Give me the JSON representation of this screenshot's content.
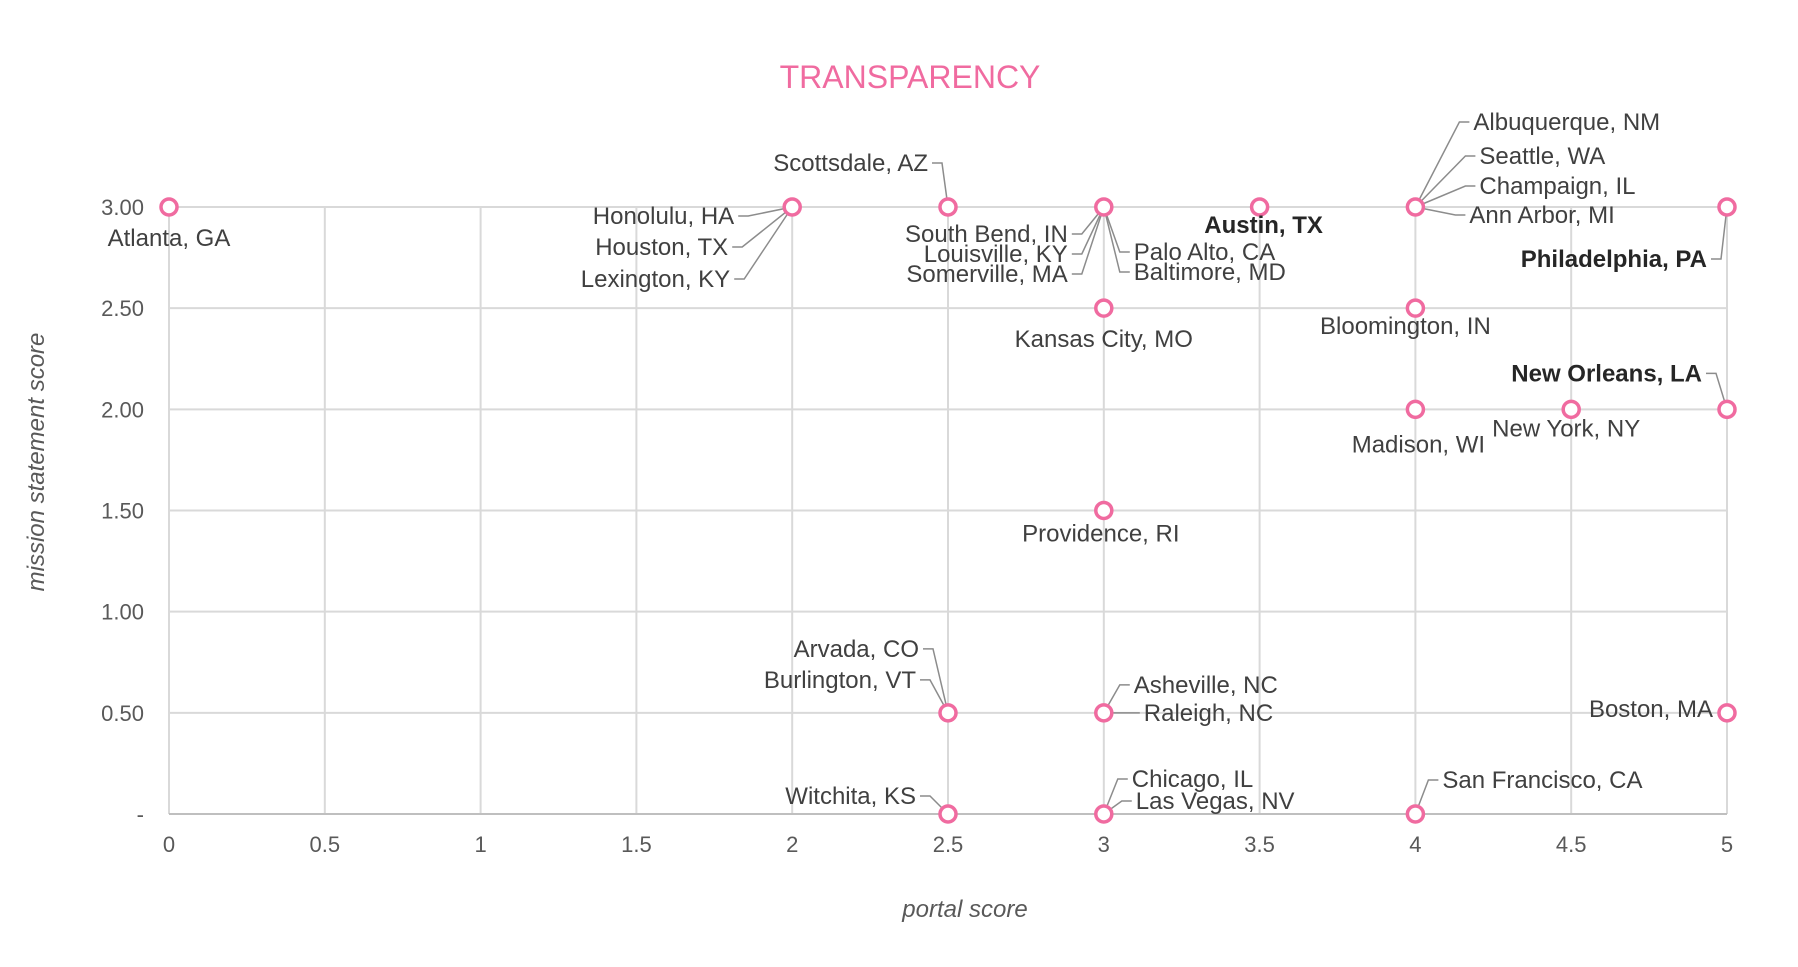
{
  "chart_data": {
    "type": "scatter",
    "title": "TRANSPARENCY",
    "xlabel": "portal score",
    "ylabel": "mission statement score",
    "xlim": [
      0,
      5
    ],
    "ylim": [
      0,
      3
    ],
    "x_ticks": [
      "0",
      "0.5",
      "1",
      "1.5",
      "2",
      "2.5",
      "3",
      "3.5",
      "4",
      "4.5",
      "5"
    ],
    "x_tick_values": [
      0,
      0.5,
      1,
      1.5,
      2,
      2.5,
      3,
      3.5,
      4,
      4.5,
      5
    ],
    "y_ticks": [
      "-",
      "0.50",
      "1.00",
      "1.50",
      "2.00",
      "2.50",
      "3.00"
    ],
    "y_tick_values": [
      0,
      0.5,
      1,
      1.5,
      2,
      2.5,
      3
    ],
    "grid": true,
    "marker_color": "#f06ba0",
    "title_color": "#f06ba0",
    "points": [
      {
        "label": "Atlanta, GA",
        "x": 0,
        "y": 3
      },
      {
        "label": "Honolulu, HA",
        "x": 2,
        "y": 3
      },
      {
        "label": "Houston, TX",
        "x": 2,
        "y": 3
      },
      {
        "label": "Lexington, KY",
        "x": 2,
        "y": 3
      },
      {
        "label": "Scottsdale, AZ",
        "x": 2.5,
        "y": 3
      },
      {
        "label": "South Bend, IN",
        "x": 3,
        "y": 3
      },
      {
        "label": "Louisville, KY",
        "x": 3,
        "y": 3
      },
      {
        "label": "Somerville, MA",
        "x": 3,
        "y": 3
      },
      {
        "label": "Palo Alto, CA",
        "x": 3,
        "y": 3
      },
      {
        "label": "Baltimore, MD",
        "x": 3,
        "y": 3
      },
      {
        "label": "Austin, TX",
        "x": 3.5,
        "y": 3
      },
      {
        "label": "Albuquerque, NM",
        "x": 4,
        "y": 3
      },
      {
        "label": "Seattle, WA",
        "x": 4,
        "y": 3
      },
      {
        "label": "Champaign, IL",
        "x": 4,
        "y": 3
      },
      {
        "label": "Ann Arbor, MI",
        "x": 4,
        "y": 3
      },
      {
        "label": "Philadelphia, PA",
        "x": 5,
        "y": 3
      },
      {
        "label": "Kansas City, MO",
        "x": 3,
        "y": 2.5
      },
      {
        "label": "Bloomington, IN",
        "x": 4,
        "y": 2.5
      },
      {
        "label": "Madison, WI",
        "x": 4,
        "y": 2
      },
      {
        "label": "New York, NY",
        "x": 4.5,
        "y": 2
      },
      {
        "label": "New Orleans, LA",
        "x": 5,
        "y": 2
      },
      {
        "label": "Providence, RI",
        "x": 3,
        "y": 1.5
      },
      {
        "label": "Arvada, CO",
        "x": 2.5,
        "y": 0.5
      },
      {
        "label": "Burlington, VT",
        "x": 2.5,
        "y": 0.5
      },
      {
        "label": "Asheville, NC",
        "x": 3,
        "y": 0.5
      },
      {
        "label": "Raleigh, NC",
        "x": 3,
        "y": 0.5
      },
      {
        "label": "Boston, MA",
        "x": 5,
        "y": 0.5
      },
      {
        "label": "Witchita, KS",
        "x": 2.5,
        "y": 0
      },
      {
        "label": "Chicago, IL",
        "x": 3,
        "y": 0
      },
      {
        "label": "Las Vegas, NV",
        "x": 3,
        "y": 0
      },
      {
        "label": "San Francisco, CA",
        "x": 4,
        "y": 0
      }
    ]
  }
}
